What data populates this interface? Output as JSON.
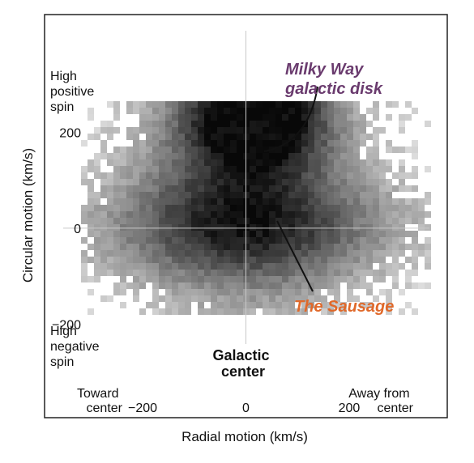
{
  "chart_data": {
    "type": "heatmap",
    "title": "",
    "xlabel": "Radial motion (km/s)",
    "ylabel": "Circular motion (km/s)",
    "xlim": [
      -390,
      390
    ],
    "ylim": [
      -395,
      445
    ],
    "grid": false,
    "center_lines": true,
    "x_ticks": [
      {
        "value": -200,
        "label": "−200"
      },
      {
        "value": 0,
        "label": "0"
      },
      {
        "value": 200,
        "label": "200"
      }
    ],
    "y_ticks": [
      {
        "value": 200,
        "label": "200"
      },
      {
        "value": 0,
        "label": "0"
      },
      {
        "value": -200,
        "label": "−200"
      }
    ],
    "corner_labels": {
      "x_low": [
        "Toward",
        "center"
      ],
      "x_high": [
        "Away from",
        "center"
      ],
      "y_high": [
        "High",
        "positive",
        "spin"
      ],
      "y_low": [
        "High",
        "negative",
        "spin"
      ]
    },
    "center_label": [
      "Galactic",
      "center"
    ],
    "annotations": [
      {
        "id": "disk",
        "lines": [
          "Milky Way",
          "galactic disk"
        ],
        "color": "#6a3b6e",
        "target": [
          70,
          250
        ]
      },
      {
        "id": "sausage",
        "lines": [
          "The Sausage"
        ],
        "color": "#e0692a",
        "target": [
          120,
          -10
        ]
      }
    ],
    "components": [
      {
        "name": "disk",
        "center": [
          20,
          240
        ],
        "spread": [
          95,
          75
        ],
        "weight": 1.0
      },
      {
        "name": "disk_halo",
        "center": [
          0,
          170
        ],
        "spread": [
          150,
          130
        ],
        "weight": 0.45
      },
      {
        "name": "sausage",
        "center": [
          0,
          0
        ],
        "spread": [
          215,
          80
        ],
        "weight": 0.55
      },
      {
        "name": "halo",
        "center": [
          0,
          -60
        ],
        "spread": [
          160,
          140
        ],
        "weight": 0.25
      }
    ]
  }
}
